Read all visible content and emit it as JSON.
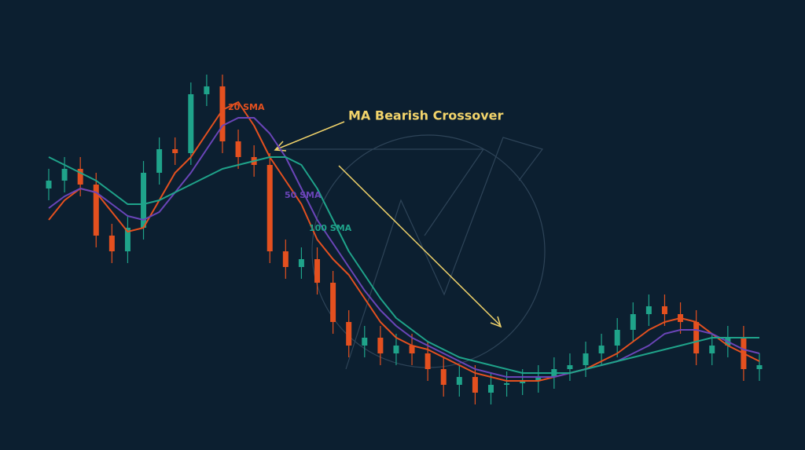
{
  "chart_data": {
    "type": "candlestick",
    "annotation": "MA Bearish Crossover",
    "ylim": [
      0,
      90
    ],
    "up_color": "#1fa38a",
    "down_color": "#e4501f",
    "candles": {
      "open": [
        58,
        60,
        63,
        59,
        46,
        42,
        48,
        62,
        68,
        67,
        82,
        84,
        70,
        66,
        64,
        42,
        38,
        40,
        34,
        24,
        18,
        20,
        16,
        18,
        16,
        12,
        8,
        10,
        6,
        8,
        8.4,
        9,
        10,
        12,
        13,
        16,
        18,
        22,
        26,
        28,
        26,
        24,
        16,
        18,
        20,
        12
      ],
      "high": [
        63,
        66,
        66,
        62,
        49,
        51,
        65,
        71,
        71,
        85,
        87,
        87,
        73,
        69,
        67,
        45,
        43,
        43,
        37,
        27,
        23,
        23,
        21,
        21,
        19,
        15,
        13,
        13,
        11,
        11.4,
        12,
        13,
        15,
        16,
        19,
        21,
        25,
        29,
        31,
        31,
        29,
        27,
        21,
        23,
        23,
        16
      ],
      "low": [
        55,
        57,
        56,
        43,
        39,
        39,
        45,
        59,
        64,
        64,
        79,
        67,
        63,
        61,
        39,
        35,
        35,
        31,
        21,
        15,
        15,
        13,
        13,
        13,
        9,
        5,
        5,
        3,
        3,
        5,
        5.4,
        6,
        7,
        9,
        10,
        13,
        15,
        19,
        23,
        23,
        21,
        13,
        13,
        15,
        9,
        9
      ],
      "close": [
        60,
        63,
        59,
        46,
        42,
        48,
        62,
        68,
        67,
        82,
        84,
        70,
        66,
        64,
        42,
        38,
        40,
        34,
        24,
        18,
        20,
        16,
        18,
        16,
        12,
        8,
        10,
        6,
        8,
        8.4,
        9,
        10,
        12,
        13,
        16,
        18,
        22,
        26,
        28,
        26,
        24,
        16,
        18,
        20,
        12,
        13
      ]
    },
    "series": [
      {
        "name": "20 SMA",
        "color": "#e4501f",
        "values": [
          50,
          55,
          58,
          57,
          52,
          47,
          48,
          55,
          62,
          66,
          72,
          78,
          80,
          74,
          66,
          60,
          54,
          45,
          40,
          36,
          30,
          24,
          20,
          18,
          17,
          15,
          13,
          11,
          10,
          9,
          9,
          9,
          10,
          11,
          12,
          14,
          16,
          19,
          22,
          24,
          25,
          24,
          21,
          18,
          16,
          14
        ]
      },
      {
        "name": "50 SMA",
        "color": "#6a45b8",
        "values": [
          53,
          56,
          58,
          57,
          54,
          51,
          50,
          52,
          57,
          62,
          68,
          74,
          76,
          76,
          72,
          66,
          58,
          50,
          44,
          38,
          32,
          27,
          23,
          20,
          18,
          16,
          14,
          12,
          11,
          10,
          10,
          10,
          10,
          11,
          12,
          13,
          14,
          16,
          18,
          21,
          22,
          22,
          21,
          19,
          17,
          16
        ]
      },
      {
        "name": "100 SMA",
        "color": "#1fa38a",
        "values": [
          66,
          64,
          62,
          60,
          57,
          54,
          54,
          55,
          57,
          59,
          61,
          63,
          64,
          65,
          66,
          66,
          64,
          58,
          50,
          42,
          36,
          30,
          25,
          22,
          19,
          17,
          15,
          14,
          13,
          12,
          11,
          11,
          11,
          11,
          12,
          13,
          14,
          15,
          16,
          17,
          18,
          19,
          20,
          20,
          20,
          20
        ]
      }
    ]
  }
}
